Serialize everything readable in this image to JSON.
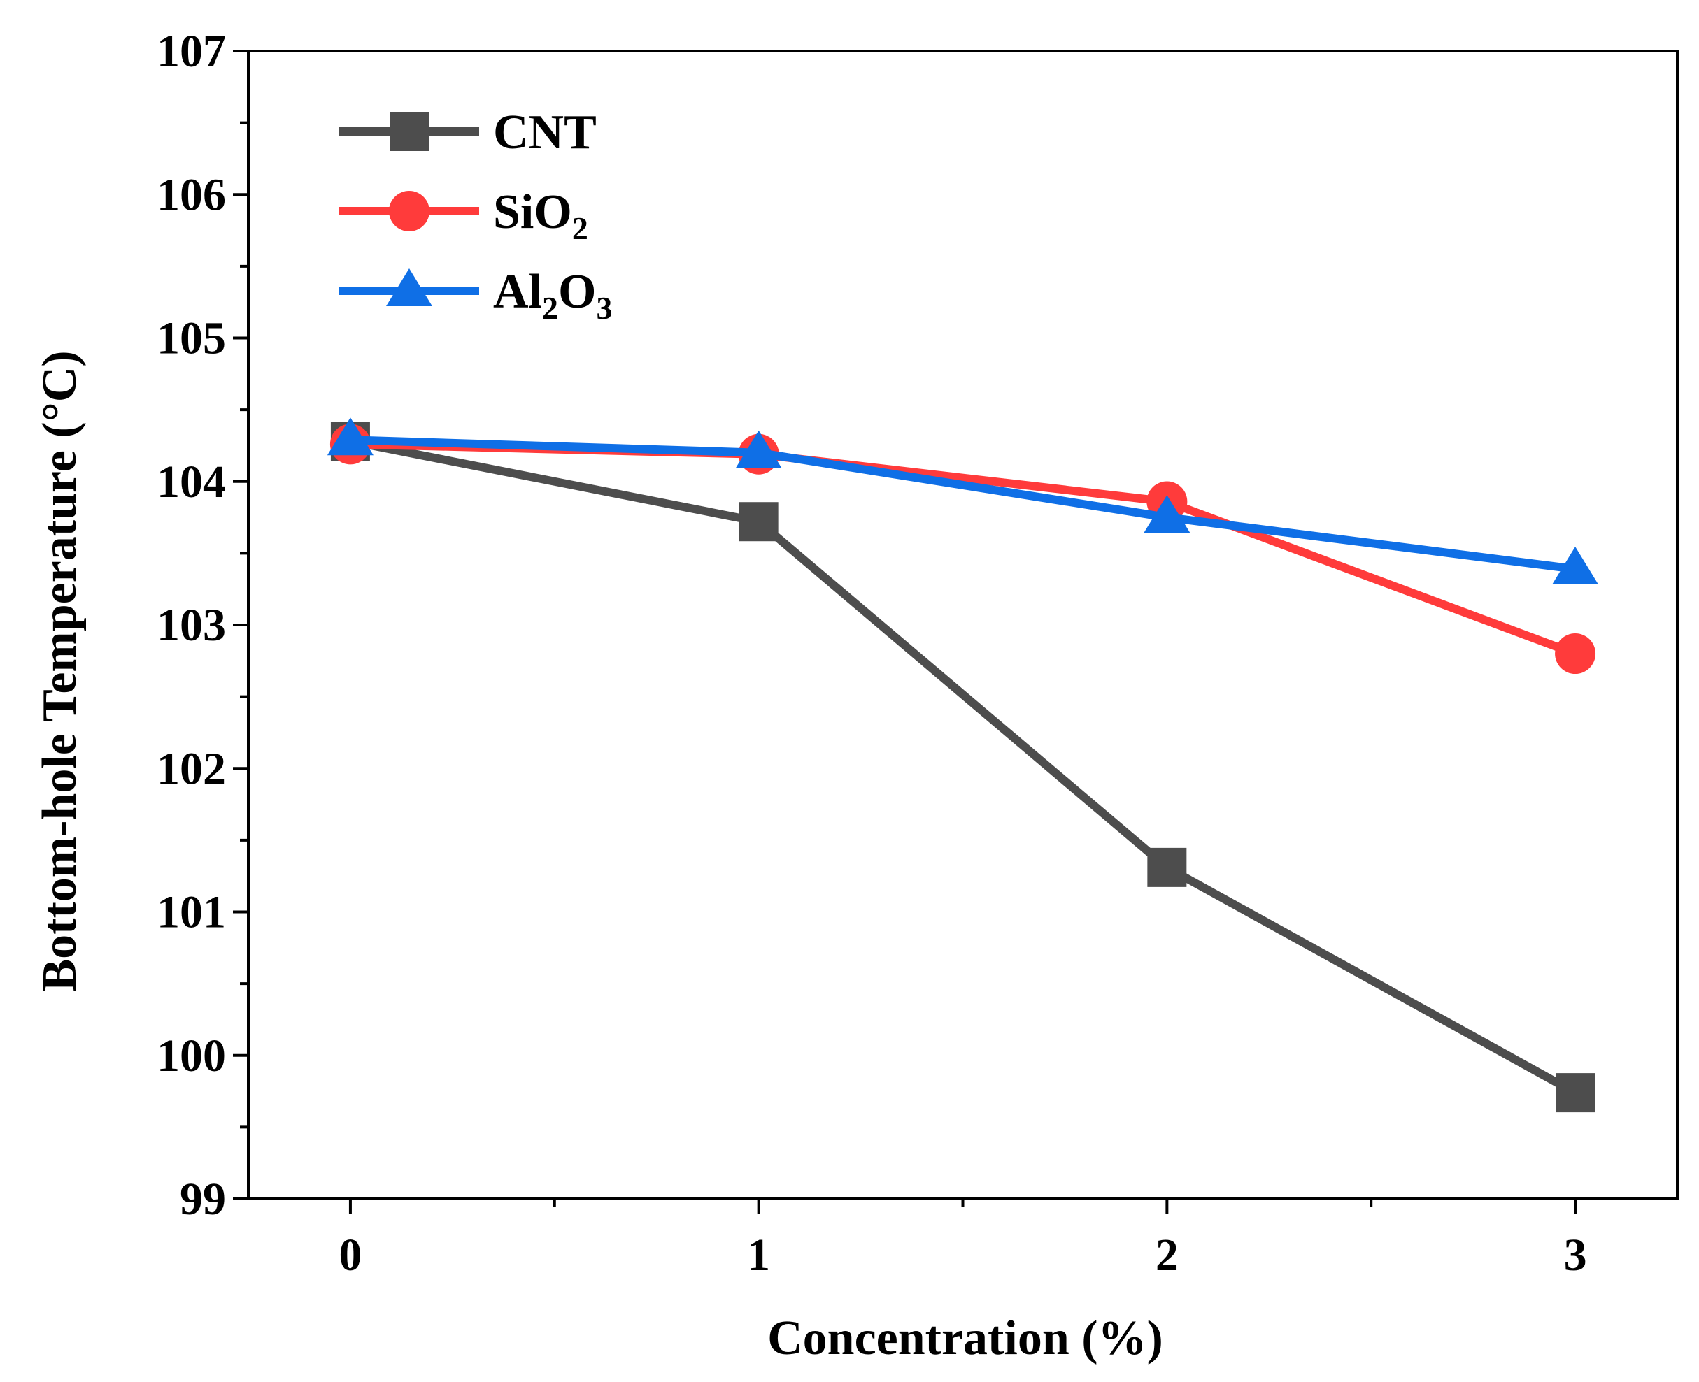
{
  "chart_data": {
    "type": "line",
    "xlabel": "Concentration (%)",
    "ylabel": "Bottom-hole Temperature (°C)",
    "xlim": [
      -0.25,
      3.25
    ],
    "ylim": [
      99,
      107
    ],
    "x_ticks": [
      "0",
      "1",
      "2",
      "3"
    ],
    "y_ticks": [
      "99",
      "100",
      "101",
      "102",
      "103",
      "104",
      "105",
      "106",
      "107"
    ],
    "x": [
      0,
      1,
      2,
      3
    ],
    "series": [
      {
        "name": "CNT",
        "legend_base": "CNT",
        "legend_sub": [],
        "color": "#4d4d4d",
        "marker": "square",
        "values": [
          104.28,
          103.72,
          101.31,
          99.74
        ]
      },
      {
        "name": "SiO2",
        "legend_base": "SiO",
        "legend_sub": [
          "2"
        ],
        "color": "#ff3b3b",
        "marker": "circle",
        "values": [
          104.26,
          104.19,
          103.86,
          102.8
        ]
      },
      {
        "name": "Al2O3",
        "legend_base": "Al",
        "legend_sub": [
          "2",
          "O",
          "3"
        ],
        "color": "#0f6fe6",
        "marker": "triangle",
        "values": [
          104.29,
          104.2,
          103.75,
          103.39
        ]
      }
    ],
    "legend_position": "top-left",
    "grid": false
  }
}
